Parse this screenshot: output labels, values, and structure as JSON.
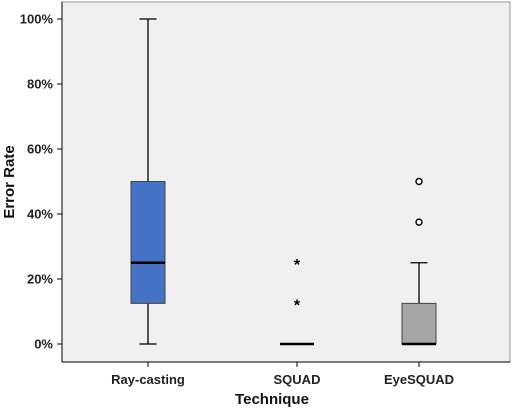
{
  "chart_data": {
    "type": "box",
    "title": "",
    "xlabel": "Technique",
    "ylabel": "Error Rate",
    "ylim": [
      0,
      100
    ],
    "yticks": [
      0,
      20,
      40,
      60,
      80,
      100
    ],
    "ytick_labels": [
      "0%",
      "20%",
      "40%",
      "60%",
      "80%",
      "100%"
    ],
    "grid": false,
    "categories": [
      "Ray-casting",
      "SQUAD",
      "EyeSQUAD"
    ],
    "boxes": [
      {
        "category": "Ray-casting",
        "whisker_low": 0,
        "q1": 12.5,
        "median": 25,
        "q3": 50,
        "whisker_high": 100,
        "outliers": [],
        "extremes": [],
        "color": "#4472c4"
      },
      {
        "category": "SQUAD",
        "whisker_low": 0,
        "q1": 0,
        "median": 0,
        "q3": 0,
        "whisker_high": 0,
        "outliers": [],
        "extremes": [
          12.5,
          25
        ],
        "color": "#7f7f7f"
      },
      {
        "category": "EyeSQUAD",
        "whisker_low": 0,
        "q1": 0,
        "median": 0,
        "q3": 12.5,
        "whisker_high": 25,
        "outliers": [
          37.5,
          50
        ],
        "extremes": [],
        "color": "#a6a6a6"
      }
    ],
    "colors": {
      "plot_background": "#f0f0f0",
      "axis": "#000000"
    }
  }
}
